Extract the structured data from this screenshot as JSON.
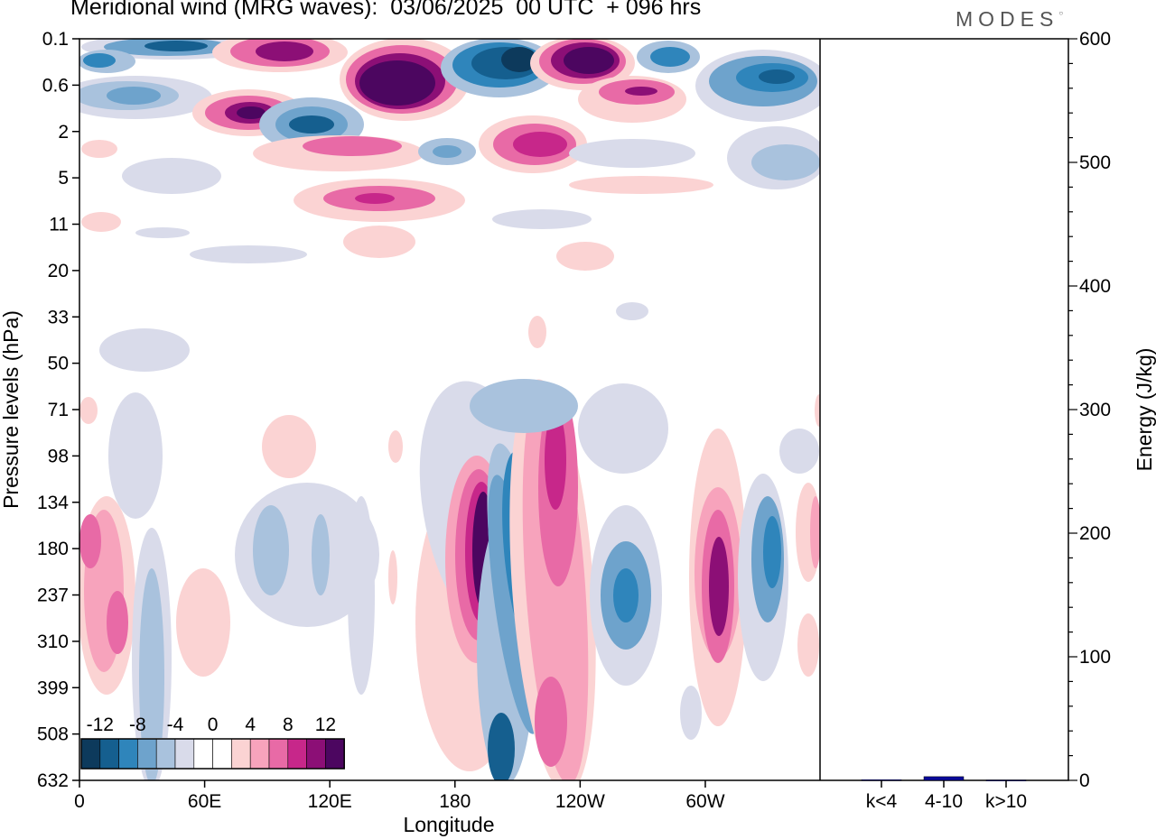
{
  "header": {
    "title": "Meridional wind (MRG waves):  03/06/2025  00 UTC  + 096 hrs",
    "logo": "MODES"
  },
  "chart_data": [
    {
      "type": "heatmap",
      "xlabel": "Longitude",
      "ylabel": "Pressure levels (hPa)",
      "x_ticks": [
        "0",
        "60E",
        "120E",
        "180",
        "120W",
        "60W"
      ],
      "y_ticks": [
        "0.1",
        "0.6",
        "2",
        "5",
        "11",
        "20",
        "33",
        "50",
        "71",
        "98",
        "134",
        "180",
        "237",
        "310",
        "399",
        "508",
        "632"
      ],
      "colorbar": {
        "labels": [
          "-12",
          "-8",
          "-4",
          "0",
          "4",
          "8",
          "12"
        ],
        "colors": [
          "#0d3a5c",
          "#155f8f",
          "#2f85bb",
          "#6ea3cc",
          "#a9c2dd",
          "#d9dbea",
          "#ffffff",
          "#ffffff",
          "#fbd3d3",
          "#f7a3bc",
          "#e86aa6",
          "#c7278a",
          "#8c0f76",
          "#4c0660"
        ]
      },
      "features": [
        {
          "sign": "positive",
          "lon": 190,
          "p_top": 134,
          "p_bottom": 310,
          "peak": 14
        },
        {
          "sign": "negative",
          "lon": 207,
          "p_top": 134,
          "p_bottom": 237,
          "peak": -14
        },
        {
          "sign": "positive",
          "lon": 224,
          "p_top": 71,
          "p_bottom": 632,
          "peak": 10
        },
        {
          "sign": "negative",
          "lon": 257,
          "p_top": 180,
          "p_bottom": 310,
          "peak": -8
        },
        {
          "sign": "positive",
          "lon": 311,
          "p_top": 134,
          "p_bottom": 399,
          "peak": 13
        },
        {
          "sign": "negative",
          "lon": 331,
          "p_top": 134,
          "p_bottom": 310,
          "peak": -9
        },
        {
          "sign": "positive",
          "lon": 160,
          "p_top": 0.1,
          "p_bottom": 0.6,
          "peak": 14
        },
        {
          "sign": "negative",
          "lon": 209,
          "p_top": 0.1,
          "p_bottom": 0.6,
          "peak": -14
        },
        {
          "sign": "positive",
          "lon": 235,
          "p_top": 0.1,
          "p_bottom": 0.6,
          "peak": 14
        },
        {
          "sign": "positive",
          "lon": 82,
          "p_top": 0.6,
          "p_bottom": 2,
          "peak": 13
        }
      ]
    },
    {
      "type": "bar",
      "ylabel": "Energy (J/kg)",
      "categories": [
        "k<4",
        "4-10",
        "k>10"
      ],
      "values": [
        0.5,
        3,
        0.3
      ],
      "ylim": [
        0,
        600
      ],
      "y_ticks": [
        "0",
        "100",
        "200",
        "300",
        "400",
        "500",
        "600"
      ],
      "bar_color": "#0a0a9a"
    }
  ]
}
